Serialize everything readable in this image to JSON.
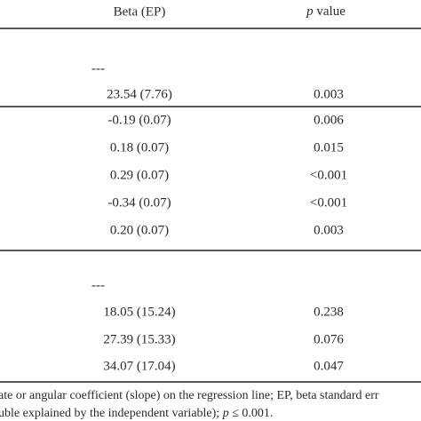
{
  "table": {
    "header": [
      "Beta (EP)",
      [
        "p",
        " value"
      ]
    ],
    "rows": [
      [
        "---"
      ],
      [
        "23.54 (7.76)",
        "0.003"
      ],
      [
        "-0.19 (0.07)",
        "0.006"
      ],
      [
        "0.18 (0.07)",
        "0.015"
      ],
      [
        "0.29 (0.07)",
        "<0.001"
      ],
      [
        "-0.34 (0.07)",
        "<0.001"
      ],
      [
        "0.20 (0.07)",
        "0.003"
      ],
      [
        "---"
      ],
      [
        "18.05 (15.24)",
        "0.238"
      ],
      [
        "27.39 (15.33)",
        "0.076"
      ],
      [
        "34.07 (17.04)",
        "0.047"
      ]
    ]
  },
  "footnote": [
    [
      "ate or angular coefficient (slope) on the regression line; EP, beta standard err"
    ],
    [
      "uble explained by the independent variable); ",
      "p",
      " ≤ 0.001."
    ]
  ]
}
